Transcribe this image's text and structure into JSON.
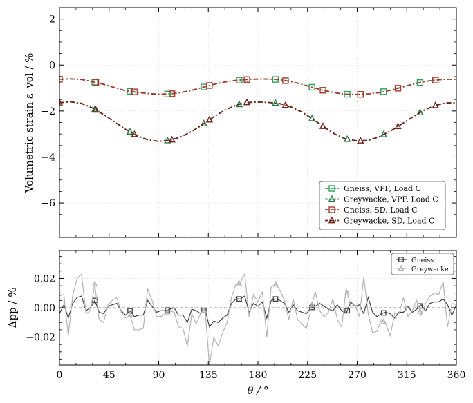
{
  "chart_data": [
    {
      "type": "line",
      "ylabel": "Volumetric strain ε_vol / %",
      "ylim": [
        -7.5,
        2.5
      ],
      "xlim": [
        0,
        360
      ],
      "yticks": [
        2,
        0,
        -2,
        -4,
        -6
      ],
      "ytick_labels": [
        "2",
        "0",
        "−2",
        "−4",
        "−6"
      ],
      "grid": true,
      "legend": "lower-right",
      "x": [
        0,
        10,
        20,
        30,
        40,
        50,
        60,
        70,
        80,
        90,
        100,
        110,
        120,
        130,
        140,
        150,
        160,
        170,
        180,
        190,
        200,
        210,
        220,
        230,
        240,
        250,
        260,
        270,
        280,
        290,
        300,
        310,
        320,
        330,
        340,
        350,
        360
      ],
      "series": [
        {
          "name": "Gneiss, VPF, Load C",
          "color": "#2e9e5a",
          "marker": "square",
          "values": [
            -0.62,
            -0.6,
            -0.63,
            -0.72,
            -0.84,
            -0.98,
            -1.12,
            -1.18,
            -1.24,
            -1.27,
            -1.26,
            -1.2,
            -1.1,
            -0.97,
            -0.84,
            -0.74,
            -0.67,
            -0.63,
            -0.61,
            -0.61,
            -0.64,
            -0.72,
            -0.84,
            -0.98,
            -1.11,
            -1.21,
            -1.27,
            -1.28,
            -1.26,
            -1.2,
            -1.1,
            -0.97,
            -0.84,
            -0.73,
            -0.66,
            -0.62,
            -0.62
          ],
          "marker_x": [
            32,
            64,
            98,
            131,
            163,
            196,
            229,
            261,
            294,
            327
          ]
        },
        {
          "name": "Greywacke, VPF, Load C",
          "color": "#1e7a45",
          "marker": "triangle",
          "values": [
            -1.64,
            -1.6,
            -1.67,
            -1.87,
            -2.15,
            -2.47,
            -2.8,
            -3.07,
            -3.25,
            -3.32,
            -3.28,
            -3.13,
            -2.89,
            -2.58,
            -2.25,
            -1.96,
            -1.75,
            -1.63,
            -1.61,
            -1.63,
            -1.68,
            -1.82,
            -2.05,
            -2.36,
            -2.7,
            -3.01,
            -3.22,
            -3.3,
            -3.28,
            -3.12,
            -2.88,
            -2.58,
            -2.27,
            -1.98,
            -1.77,
            -1.65,
            -1.64
          ],
          "marker_x": [
            32,
            64,
            98,
            131,
            163,
            196,
            229,
            261,
            294,
            327
          ]
        },
        {
          "name": "Gneiss, SD, Load C",
          "color": "#a33a2b",
          "marker": "square",
          "values": [
            -0.62,
            -0.6,
            -0.63,
            -0.72,
            -0.84,
            -0.98,
            -1.12,
            -1.18,
            -1.24,
            -1.27,
            -1.26,
            -1.2,
            -1.1,
            -0.97,
            -0.84,
            -0.74,
            -0.67,
            -0.63,
            -0.61,
            -0.61,
            -0.64,
            -0.72,
            -0.84,
            -0.98,
            -1.11,
            -1.21,
            -1.27,
            -1.28,
            -1.26,
            -1.2,
            -1.1,
            -0.97,
            -0.84,
            -0.73,
            -0.66,
            -0.62,
            -0.62
          ],
          "marker_x": [
            0,
            33,
            68,
            102,
            136,
            170,
            205,
            239,
            273,
            307,
            341
          ]
        },
        {
          "name": "Greywacke, SD, Load C",
          "color": "#6e2118",
          "marker": "triangle",
          "values": [
            -1.64,
            -1.6,
            -1.67,
            -1.87,
            -2.15,
            -2.47,
            -2.8,
            -3.07,
            -3.25,
            -3.32,
            -3.28,
            -3.13,
            -2.89,
            -2.58,
            -2.25,
            -1.96,
            -1.75,
            -1.63,
            -1.61,
            -1.63,
            -1.68,
            -1.82,
            -2.05,
            -2.36,
            -2.7,
            -3.01,
            -3.22,
            -3.3,
            -3.28,
            -3.12,
            -2.88,
            -2.58,
            -2.27,
            -1.98,
            -1.77,
            -1.65,
            -1.64
          ],
          "marker_x": [
            0,
            33,
            68,
            102,
            136,
            170,
            205,
            239,
            273,
            307,
            341
          ]
        }
      ]
    },
    {
      "type": "line",
      "xlabel": "θ / °",
      "ylabel": "Δpp / %",
      "ylim": [
        -0.039,
        0.039
      ],
      "xlim": [
        0,
        360
      ],
      "xticks": [
        0,
        45,
        90,
        135,
        180,
        225,
        270,
        315,
        360
      ],
      "xtick_labels": [
        "0",
        "45",
        "90",
        "135",
        "180",
        "225",
        "270",
        "315",
        "360"
      ],
      "yticks": [
        0.02,
        0.0,
        -0.02
      ],
      "ytick_labels": [
        "0.02",
        "0.00",
        "−0.02"
      ],
      "zero_line": true,
      "grid": true,
      "legend": "top-right",
      "x": [
        0,
        4,
        8,
        12,
        16,
        20,
        24,
        28,
        32,
        36,
        40,
        44,
        48,
        52,
        56,
        60,
        64,
        68,
        72,
        76,
        80,
        84,
        88,
        92,
        96,
        100,
        104,
        108,
        112,
        116,
        120,
        124,
        128,
        132,
        136,
        140,
        144,
        148,
        152,
        156,
        160,
        164,
        168,
        172,
        176,
        180,
        184,
        188,
        192,
        196,
        200,
        204,
        208,
        212,
        216,
        220,
        224,
        228,
        232,
        236,
        240,
        244,
        248,
        252,
        256,
        260,
        264,
        268,
        272,
        276,
        280,
        284,
        288,
        292,
        296,
        300,
        304,
        308,
        312,
        316,
        320,
        324,
        328,
        332,
        336,
        340,
        344,
        348,
        352,
        356,
        360
      ],
      "series": [
        {
          "name": "Gneiss",
          "color": "#444444",
          "marker": "square",
          "values": [
            -0.004,
            0.002,
            -0.007,
            0.003,
            0.007,
            0.008,
            -0.002,
            0.0,
            0.005,
            -0.003,
            -0.004,
            0.001,
            0.002,
            0.003,
            -0.002,
            -0.005,
            -0.002,
            -0.006,
            -0.005,
            -0.005,
            0.005,
            0.001,
            -0.003,
            -0.002,
            -0.002,
            -0.001,
            0.0,
            -0.005,
            -0.005,
            -0.01,
            -0.001,
            -0.002,
            -0.004,
            -0.001,
            -0.013,
            -0.009,
            -0.01,
            -0.007,
            -0.005,
            0.003,
            0.006,
            0.006,
            0.008,
            -0.003,
            0.003,
            0.001,
            0.004,
            -0.007,
            0.005,
            0.006,
            0.005,
            0.003,
            -0.003,
            0.002,
            -0.002,
            -0.003,
            -0.004,
            0.0,
            0.001,
            0.003,
            0.001,
            -0.001,
            -0.002,
            0.002,
            -0.002,
            -0.004,
            0.004,
            0.001,
            0.002,
            -0.004,
            0.007,
            -0.003,
            -0.006,
            -0.004,
            -0.003,
            -0.004,
            -0.007,
            -0.003,
            -0.003,
            0.001,
            -0.003,
            -0.001,
            0.002,
            -0.002,
            0.003,
            0.004,
            0.004,
            0.006,
            0.002,
            -0.005,
            0.002
          ],
          "marker_x": [
            32,
            64,
            98,
            131,
            163,
            196,
            229,
            261,
            294,
            327
          ]
        },
        {
          "name": "Greywacke",
          "color": "#b2b2b2",
          "marker": "triangle",
          "values": [
            0.008,
            0.009,
            -0.019,
            0.008,
            0.02,
            0.023,
            -0.004,
            -0.002,
            0.016,
            -0.008,
            -0.01,
            0.002,
            0.005,
            0.007,
            -0.003,
            -0.007,
            -0.005,
            -0.015,
            -0.015,
            -0.014,
            0.013,
            0.005,
            -0.006,
            -0.006,
            -0.004,
            -0.002,
            -0.003,
            -0.013,
            -0.014,
            -0.026,
            -0.004,
            -0.011,
            -0.004,
            -0.001,
            -0.039,
            -0.02,
            -0.026,
            -0.017,
            -0.01,
            0.007,
            0.016,
            0.017,
            0.023,
            -0.006,
            0.009,
            0.004,
            0.011,
            -0.02,
            0.014,
            0.016,
            0.012,
            0.005,
            -0.008,
            0.006,
            -0.008,
            -0.011,
            -0.014,
            -0.001,
            0.011,
            -0.002,
            -0.006,
            -0.003,
            0.006,
            -0.008,
            -0.013,
            0.013,
            0.001,
            0.002,
            -0.006,
            0.021,
            -0.004,
            -0.017,
            -0.016,
            -0.008,
            -0.011,
            -0.019,
            -0.004,
            -0.004,
            0.007,
            -0.006,
            -0.002,
            0.005,
            -0.005,
            0.003,
            0.008,
            0.01,
            0.009,
            0.018,
            -0.013,
            0.003,
            0.002
          ],
          "marker_x": [
            32,
            64,
            98,
            131,
            163,
            196,
            229,
            261,
            294,
            327
          ]
        }
      ]
    }
  ]
}
